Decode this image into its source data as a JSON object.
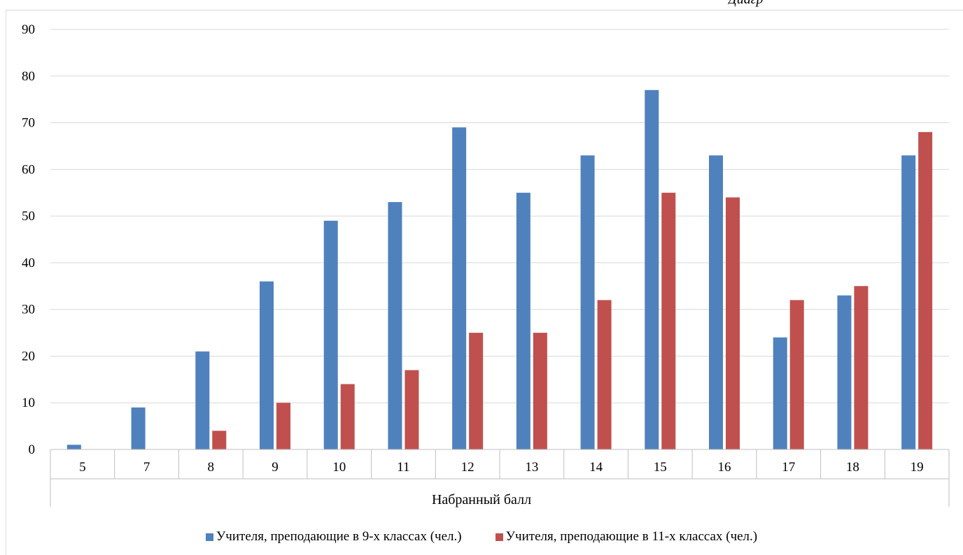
{
  "corner_caption": "Диагр",
  "chart_data": {
    "type": "bar",
    "categories": [
      "5",
      "7",
      "8",
      "9",
      "10",
      "11",
      "12",
      "13",
      "14",
      "15",
      "16",
      "17",
      "18",
      "19"
    ],
    "series": [
      {
        "name": "Учителя, преподающие в 9-х классах (чел.)",
        "values": [
          1,
          9,
          21,
          36,
          49,
          53,
          69,
          55,
          63,
          77,
          63,
          24,
          33,
          63
        ]
      },
      {
        "name": "Учителя, преподающие в 11-х классах (чел.)",
        "values": [
          0,
          0,
          4,
          10,
          14,
          17,
          25,
          25,
          32,
          55,
          54,
          32,
          35,
          68
        ]
      }
    ],
    "title": "",
    "xlabel": "Набранный балл",
    "ylabel": "",
    "ylim": [
      0,
      90
    ],
    "yticks": [
      0,
      10,
      20,
      30,
      40,
      50,
      60,
      70,
      80,
      90
    ],
    "grid": true,
    "legend_position": "bottom",
    "colors": [
      "#4f81bd",
      "#c0504d"
    ]
  }
}
